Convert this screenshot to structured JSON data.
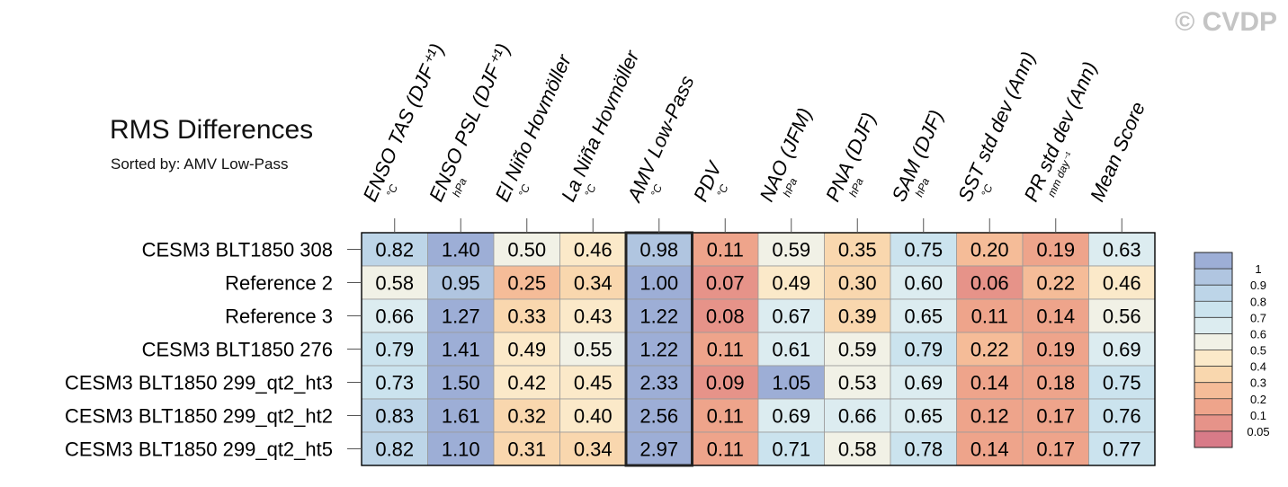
{
  "watermark": "© CVDP",
  "chart_data": {
    "type": "heatmap",
    "title": "RMS Differences",
    "subtitle": "Sorted by: AMV Low-Pass",
    "highlighted_column": "AMV Low-Pass",
    "columns": [
      {
        "label": "ENSO TAS (DJF⁺¹)",
        "unit": "°C"
      },
      {
        "label": "ENSO PSL (DJF⁺¹)",
        "unit": "hPa"
      },
      {
        "label": "El Niño Hovmöller",
        "unit": "°C"
      },
      {
        "label": "La Niña Hovmöller",
        "unit": "°C"
      },
      {
        "label": "AMV Low-Pass",
        "unit": "°C"
      },
      {
        "label": "PDV",
        "unit": "°C"
      },
      {
        "label": "NAO (JFM)",
        "unit": "hPa"
      },
      {
        "label": "PNA (DJF)",
        "unit": "hPa"
      },
      {
        "label": "SAM (DJF)",
        "unit": "hPa"
      },
      {
        "label": "SST std dev (Ann)",
        "unit": "°C"
      },
      {
        "label": "PR std dev (Ann)",
        "unit": "mm day⁻¹"
      },
      {
        "label": "Mean Score",
        "unit": ""
      }
    ],
    "rows": [
      {
        "name": "CESM3 BLT1850 308",
        "values": [
          0.82,
          1.4,
          0.5,
          0.46,
          0.98,
          0.11,
          0.59,
          0.35,
          0.75,
          0.2,
          0.19,
          0.63
        ]
      },
      {
        "name": "Reference 2",
        "values": [
          0.58,
          0.95,
          0.25,
          0.34,
          1.0,
          0.07,
          0.49,
          0.3,
          0.6,
          0.06,
          0.22,
          0.46
        ]
      },
      {
        "name": "Reference 3",
        "values": [
          0.66,
          1.27,
          0.33,
          0.43,
          1.22,
          0.08,
          0.67,
          0.39,
          0.65,
          0.11,
          0.14,
          0.56
        ]
      },
      {
        "name": "CESM3 BLT1850 276",
        "values": [
          0.79,
          1.41,
          0.49,
          0.55,
          1.22,
          0.11,
          0.61,
          0.59,
          0.79,
          0.22,
          0.19,
          0.69
        ]
      },
      {
        "name": "CESM3 BLT1850 299_qt2_ht3",
        "values": [
          0.73,
          1.5,
          0.42,
          0.45,
          2.33,
          0.09,
          1.05,
          0.53,
          0.69,
          0.14,
          0.18,
          0.75
        ]
      },
      {
        "name": "CESM3 BLT1850 299_qt2_ht2",
        "values": [
          0.83,
          1.61,
          0.32,
          0.4,
          2.56,
          0.11,
          0.69,
          0.66,
          0.65,
          0.12,
          0.17,
          0.76
        ]
      },
      {
        "name": "CESM3 BLT1850 299_qt2_ht5",
        "values": [
          0.82,
          1.1,
          0.31,
          0.34,
          2.97,
          0.11,
          0.71,
          0.58,
          0.78,
          0.14,
          0.17,
          0.77
        ]
      }
    ],
    "value_format_decimals": 2,
    "colorbar": {
      "tick_labels": [
        "1",
        "0.9",
        "0.8",
        "0.7",
        "0.6",
        "0.5",
        "0.4",
        "0.3",
        "0.2",
        "0.1",
        "0.05"
      ],
      "bins": [
        {
          "min": 1.0,
          "color": "#9daed6"
        },
        {
          "min": 0.9,
          "color": "#b0c5e0"
        },
        {
          "min": 0.8,
          "color": "#bdd5e8"
        },
        {
          "min": 0.7,
          "color": "#cbe3ee"
        },
        {
          "min": 0.6,
          "color": "#dcecf0"
        },
        {
          "min": 0.5,
          "color": "#f1f1e6"
        },
        {
          "min": 0.4,
          "color": "#fbe9c9"
        },
        {
          "min": 0.3,
          "color": "#f9d7ae"
        },
        {
          "min": 0.2,
          "color": "#f5bc98"
        },
        {
          "min": 0.1,
          "color": "#eea48b"
        },
        {
          "min": 0.05,
          "color": "#e69389"
        },
        {
          "min": 0.0,
          "color": "#d87b88"
        }
      ]
    }
  }
}
